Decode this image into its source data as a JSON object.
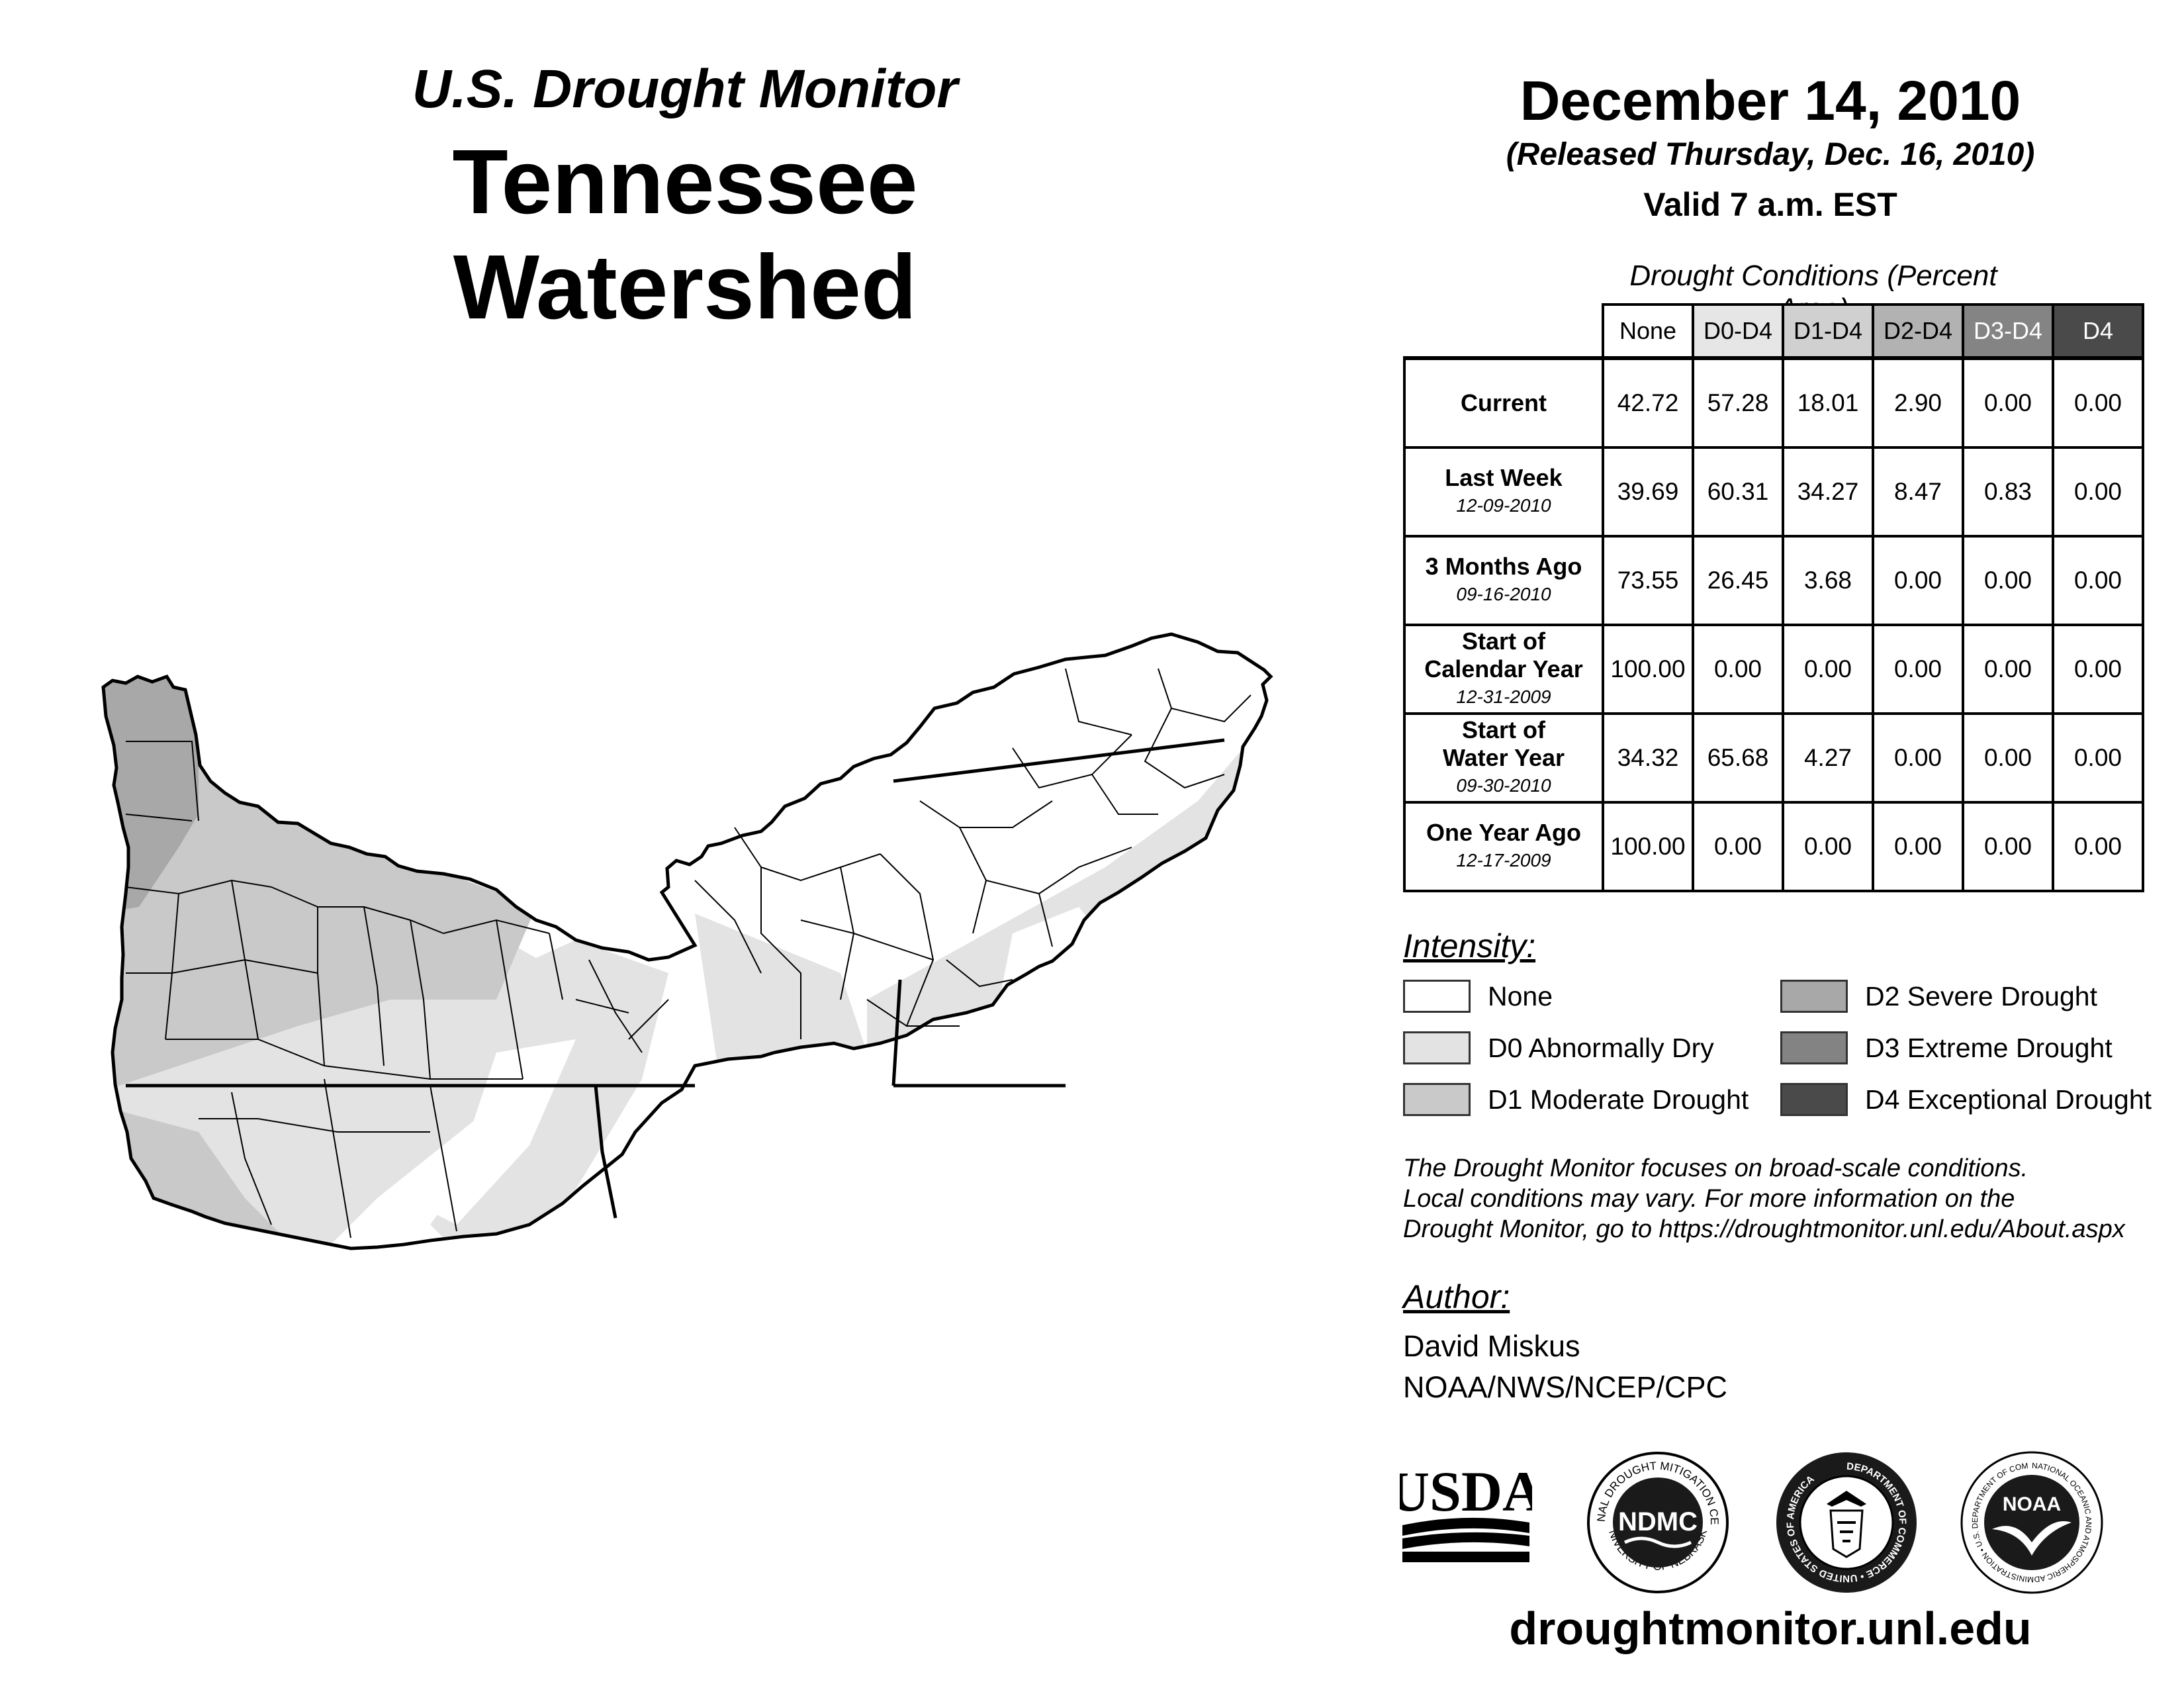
{
  "header": {
    "subtitle": "U.S. Drought Monitor",
    "title": "Tennessee Watershed",
    "date": "December 14, 2010",
    "released": "(Released Thursday, Dec. 16, 2010)",
    "valid": "Valid 7 a.m. EST"
  },
  "table": {
    "caption": "Drought Conditions (Percent Area)",
    "columns": [
      "None",
      "D0-D4",
      "D1-D4",
      "D2-D4",
      "D3-D4",
      "D4"
    ],
    "column_colors": [
      "#ffffff",
      "#e6e6e6",
      "#d0d0d0",
      "#b2b2b2",
      "#848484",
      "#4a4a4a"
    ],
    "rows": [
      {
        "label": "Current",
        "line2": "",
        "date": "",
        "values": [
          "42.72",
          "57.28",
          "18.01",
          "2.90",
          "0.00",
          "0.00"
        ]
      },
      {
        "label": "Last Week",
        "line2": "",
        "date": "12-09-2010",
        "values": [
          "39.69",
          "60.31",
          "34.27",
          "8.47",
          "0.83",
          "0.00"
        ]
      },
      {
        "label": "3 Months Ago",
        "line2": "",
        "date": "09-16-2010",
        "values": [
          "73.55",
          "26.45",
          "3.68",
          "0.00",
          "0.00",
          "0.00"
        ]
      },
      {
        "label": "Start of",
        "line2": "Calendar Year",
        "date": "12-31-2009",
        "values": [
          "100.00",
          "0.00",
          "0.00",
          "0.00",
          "0.00",
          "0.00"
        ]
      },
      {
        "label": "Start of",
        "line2": "Water Year",
        "date": "09-30-2010",
        "values": [
          "34.32",
          "65.68",
          "4.27",
          "0.00",
          "0.00",
          "0.00"
        ]
      },
      {
        "label": "One Year Ago",
        "line2": "",
        "date": "12-17-2009",
        "values": [
          "100.00",
          "0.00",
          "0.00",
          "0.00",
          "0.00",
          "0.00"
        ]
      }
    ]
  },
  "legend": {
    "title": "Intensity:",
    "items": [
      {
        "label": "None",
        "color": "#ffffff"
      },
      {
        "label": "D0 Abnormally Dry",
        "color": "#e3e3e3"
      },
      {
        "label": "D1 Moderate Drought",
        "color": "#c9c9c9"
      },
      {
        "label": "D2 Severe Drought",
        "color": "#a8a8a8"
      },
      {
        "label": "D3 Extreme Drought",
        "color": "#838383"
      },
      {
        "label": "D4 Exceptional Drought",
        "color": "#4a4a4a"
      }
    ]
  },
  "note": {
    "line1": "The Drought Monitor focuses on broad-scale conditions.",
    "line2": "Local conditions may vary. For more information on the",
    "line3": "Drought Monitor, go to https://droughtmonitor.unl.edu/About.aspx"
  },
  "author": {
    "title": "Author:",
    "name": "David Miskus",
    "org": "NOAA/NWS/NCEP/CPC"
  },
  "logos": {
    "usda": "USDA",
    "ndmc": "NDMC",
    "ndmc_ring_top": "NATIONAL DROUGHT MITIGATION CENTER",
    "ndmc_ring_bottom": "UNIVERSITY OF NEBRASKA",
    "doc_ring": "DEPARTMENT OF COMMERCE • UNITED STATES OF AMERICA",
    "noaa": "NOAA",
    "noaa_ring": "NATIONAL OCEANIC AND ATMOSPHERIC ADMINISTRATION • U.S. DEPARTMENT OF COMMERCE"
  },
  "website": "droughtmonitor.unl.edu"
}
